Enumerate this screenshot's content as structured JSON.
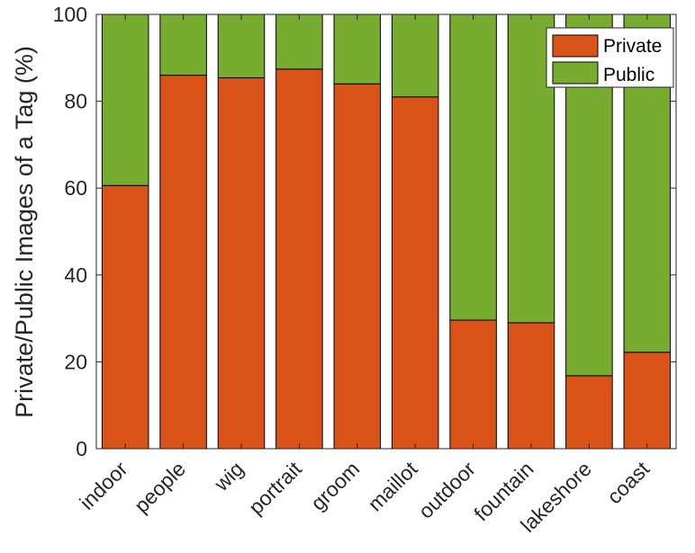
{
  "chart_data": {
    "type": "bar",
    "stacked": true,
    "title": "",
    "xlabel": "",
    "ylabel": "Private/Public Images of a Tag (%)",
    "ylim": [
      0,
      100
    ],
    "yticks": [
      0,
      20,
      40,
      60,
      80,
      100
    ],
    "grid": false,
    "legend_position": "top-right",
    "categories": [
      "indoor",
      "people",
      "wig",
      "portrait",
      "groom",
      "maillot",
      "outdoor",
      "fountain",
      "lakeshore",
      "coast"
    ],
    "series": [
      {
        "name": "Private",
        "color": "#D95319",
        "values": [
          60.6,
          86.0,
          85.4,
          87.4,
          84.0,
          81.0,
          29.6,
          29.0,
          16.8,
          22.2
        ]
      },
      {
        "name": "Public",
        "color": "#77AC30",
        "values": [
          39.4,
          14.0,
          14.6,
          12.6,
          16.0,
          19.0,
          70.4,
          71.0,
          83.2,
          77.8
        ]
      }
    ]
  }
}
